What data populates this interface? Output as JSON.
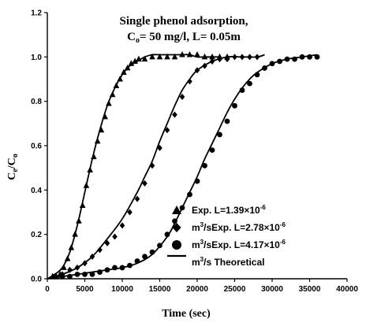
{
  "chart_data": {
    "type": "scatter",
    "title_line1": "Single phenol adsorption,",
    "title_line2_parts": [
      "C",
      "o",
      "= 50 mg/l, L= 0.05m"
    ],
    "xlabel": "Time (sec)",
    "ylabel_parts": [
      "C",
      "e",
      "/C",
      "o"
    ],
    "xlim": [
      0,
      40000
    ],
    "ylim": [
      0,
      1.2
    ],
    "xticks": [
      "0",
      "5000",
      "10000",
      "15000",
      "20000",
      "25000",
      "30000",
      "35000",
      "40000"
    ],
    "yticks": [
      "0.0",
      "0.2",
      "0.4",
      "0.6",
      "0.8",
      "1.0",
      "1.2"
    ],
    "legend_position": "bottom-right",
    "legend": [
      {
        "marker": "triangle",
        "parts": [
          "Exp. L=1.39×10",
          "-6",
          ""
        ]
      },
      {
        "marker": "diamond",
        "parts": [
          "m",
          "3",
          "/sExp. L=2.78×10",
          "-6",
          ""
        ]
      },
      {
        "marker": "circle",
        "parts": [
          "m",
          "3",
          "/sExp. L=4.17×10",
          "-6",
          ""
        ]
      },
      {
        "marker": "line",
        "parts": [
          "m",
          "3",
          "/s Theoretical"
        ]
      }
    ],
    "series": [
      {
        "marker": "triangle",
        "x": [
          700,
          1200,
          1700,
          2200,
          2700,
          3200,
          3700,
          4200,
          4700,
          5200,
          5700,
          6200,
          6700,
          7200,
          7700,
          8200,
          8700,
          9200,
          9700,
          10200,
          10700,
          11200,
          11700,
          12200,
          13000,
          14000,
          15000,
          16000,
          17000,
          18000,
          19000,
          20000,
          21000,
          22000,
          23000,
          24000
        ],
        "y": [
          0.01,
          0.01,
          0.02,
          0.05,
          0.09,
          0.14,
          0.2,
          0.26,
          0.33,
          0.42,
          0.49,
          0.55,
          0.62,
          0.67,
          0.73,
          0.79,
          0.83,
          0.87,
          0.9,
          0.93,
          0.95,
          0.97,
          0.98,
          0.99,
          0.99,
          1.0,
          1.0,
          1.0,
          1.0,
          1.01,
          1.01,
          1.01,
          1.0,
          1.0,
          1.0,
          1.0
        ]
      },
      {
        "marker": "diamond",
        "x": [
          1000,
          2000,
          3000,
          4000,
          5000,
          6000,
          7000,
          8000,
          9000,
          10000,
          11000,
          12000,
          13000,
          14000,
          15000,
          16000,
          17000,
          18000,
          19000,
          20000,
          21000,
          22000,
          23000,
          24000,
          25000,
          26000,
          27000,
          28000
        ],
        "y": [
          0.01,
          0.02,
          0.04,
          0.05,
          0.07,
          0.1,
          0.13,
          0.16,
          0.19,
          0.24,
          0.3,
          0.36,
          0.43,
          0.51,
          0.59,
          0.67,
          0.74,
          0.82,
          0.89,
          0.94,
          0.96,
          0.98,
          0.99,
          0.99,
          1.0,
          1.0,
          1.0,
          1.0
        ]
      },
      {
        "marker": "circle",
        "x": [
          1000,
          2000,
          3000,
          4000,
          5000,
          6000,
          7000,
          8000,
          9000,
          10000,
          11000,
          12000,
          13000,
          14000,
          15000,
          16000,
          17000,
          18000,
          19000,
          20000,
          21000,
          22000,
          23000,
          24000,
          25000,
          26000,
          27000,
          28000,
          29000,
          30000,
          31000,
          32000,
          33000,
          34000,
          35000,
          36000
        ],
        "y": [
          0.01,
          0.01,
          0.01,
          0.02,
          0.02,
          0.02,
          0.03,
          0.04,
          0.05,
          0.05,
          0.06,
          0.08,
          0.1,
          0.12,
          0.15,
          0.2,
          0.26,
          0.32,
          0.38,
          0.44,
          0.51,
          0.58,
          0.65,
          0.71,
          0.78,
          0.85,
          0.88,
          0.92,
          0.95,
          0.97,
          0.98,
          0.99,
          0.99,
          1.0,
          1.0,
          1.0
        ]
      }
    ],
    "curves": [
      {
        "x": [
          0,
          1000,
          2000,
          3000,
          4000,
          5000,
          6000,
          7000,
          8000,
          9000,
          10000,
          11000,
          12000,
          13000,
          14000,
          15000,
          16000,
          17000,
          18000,
          19000,
          20000,
          21000,
          22000,
          23000
        ],
        "y": [
          0.0,
          0.02,
          0.05,
          0.12,
          0.24,
          0.39,
          0.54,
          0.67,
          0.78,
          0.86,
          0.92,
          0.96,
          0.98,
          1.0,
          1.01,
          1.01,
          1.01,
          1.01,
          1.01,
          1.01,
          1.0,
          1.0,
          1.0,
          1.0
        ]
      },
      {
        "x": [
          0,
          2000,
          4000,
          6000,
          8000,
          10000,
          12000,
          13000,
          14000,
          15000,
          16000,
          17000,
          18000,
          19000,
          20000,
          22000,
          24000,
          26000,
          28000,
          29000
        ],
        "y": [
          0.0,
          0.02,
          0.05,
          0.1,
          0.18,
          0.27,
          0.39,
          0.46,
          0.53,
          0.62,
          0.7,
          0.78,
          0.85,
          0.9,
          0.94,
          0.98,
          1.0,
          1.0,
          1.0,
          1.01
        ]
      },
      {
        "x": [
          0,
          2000,
          4000,
          6000,
          8000,
          10000,
          12000,
          14000,
          16000,
          17000,
          18000,
          19000,
          20000,
          21000,
          22000,
          23000,
          24000,
          25000,
          26000,
          27000,
          28000,
          30000,
          32000,
          34000,
          36000
        ],
        "y": [
          0.0,
          0.01,
          0.02,
          0.03,
          0.04,
          0.05,
          0.07,
          0.11,
          0.19,
          0.25,
          0.32,
          0.39,
          0.46,
          0.54,
          0.61,
          0.68,
          0.75,
          0.81,
          0.86,
          0.9,
          0.93,
          0.97,
          0.99,
          1.0,
          1.01
        ]
      }
    ]
  }
}
